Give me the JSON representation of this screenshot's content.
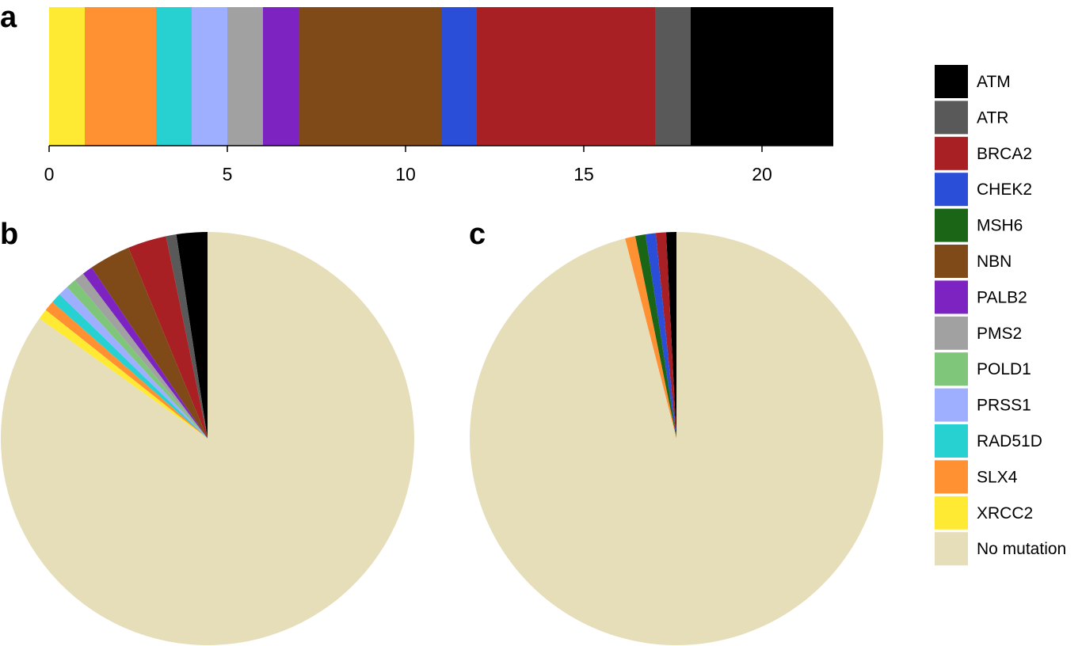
{
  "panel_labels": {
    "a": "a",
    "b": "b",
    "c": "c"
  },
  "chart_data": [
    {
      "type": "bar",
      "orientation": "horizontal-stacked",
      "panel": "a",
      "segments": [
        {
          "gene": "XRCC2",
          "value": 1
        },
        {
          "gene": "SLX4",
          "value": 2
        },
        {
          "gene": "RAD51D",
          "value": 1
        },
        {
          "gene": "PRSS1",
          "value": 1
        },
        {
          "gene": "PMS2",
          "value": 1
        },
        {
          "gene": "PALB2",
          "value": 1
        },
        {
          "gene": "NBN",
          "value": 4
        },
        {
          "gene": "CHEK2",
          "value": 1
        },
        {
          "gene": "BRCA2",
          "value": 5
        },
        {
          "gene": "ATR",
          "value": 1
        },
        {
          "gene": "ATM",
          "value": 4
        }
      ],
      "xlim": [
        0,
        22
      ],
      "xticks": [
        "0",
        "5",
        "10",
        "15",
        "20"
      ],
      "xtick_values": [
        0,
        5,
        10,
        15,
        20
      ]
    },
    {
      "type": "pie",
      "panel": "b",
      "start": "top",
      "direction": "counterclockwise",
      "slices": [
        {
          "gene": "ATM",
          "value": 2.4
        },
        {
          "gene": "ATR",
          "value": 0.8
        },
        {
          "gene": "BRCA2",
          "value": 3.0
        },
        {
          "gene": "CHEK2",
          "value": 0
        },
        {
          "gene": "MSH6",
          "value": 0
        },
        {
          "gene": "NBN",
          "value": 3.2
        },
        {
          "gene": "PALB2",
          "value": 0.8
        },
        {
          "gene": "PMS2",
          "value": 0.8
        },
        {
          "gene": "POLD1",
          "value": 0.8
        },
        {
          "gene": "PRSS1",
          "value": 0.8
        },
        {
          "gene": "RAD51D",
          "value": 0.8
        },
        {
          "gene": "SLX4",
          "value": 0.8
        },
        {
          "gene": "XRCC2",
          "value": 0.8
        },
        {
          "gene": "No mutation",
          "value": 84.2
        }
      ]
    },
    {
      "type": "pie",
      "panel": "c",
      "start": "top",
      "direction": "counterclockwise",
      "slices": [
        {
          "gene": "ATM",
          "value": 0.8
        },
        {
          "gene": "BRCA2",
          "value": 0.8
        },
        {
          "gene": "CHEK2",
          "value": 0.8
        },
        {
          "gene": "MSH6",
          "value": 0.8
        },
        {
          "gene": "SLX4",
          "value": 0.8
        },
        {
          "gene": "No mutation",
          "value": 96.0
        }
      ]
    }
  ],
  "legend": {
    "position": "right",
    "items": [
      {
        "label": "ATM",
        "color": "#000000"
      },
      {
        "label": "ATR",
        "color": "#595959"
      },
      {
        "label": "BRCA2",
        "color": "#a81f24"
      },
      {
        "label": "CHEK2",
        "color": "#2a4ed8"
      },
      {
        "label": "MSH6",
        "color": "#1b6516"
      },
      {
        "label": "NBN",
        "color": "#7f4a17"
      },
      {
        "label": "PALB2",
        "color": "#7c23c2"
      },
      {
        "label": "PMS2",
        "color": "#a1a1a1"
      },
      {
        "label": "POLD1",
        "color": "#80c67a"
      },
      {
        "label": "PRSS1",
        "color": "#9eafff"
      },
      {
        "label": "RAD51D",
        "color": "#27d1d1"
      },
      {
        "label": "SLX4",
        "color": "#ff9133"
      },
      {
        "label": "XRCC2",
        "color": "#ffea33"
      },
      {
        "label": "No mutation",
        "color": "#e6ddb9"
      }
    ]
  }
}
